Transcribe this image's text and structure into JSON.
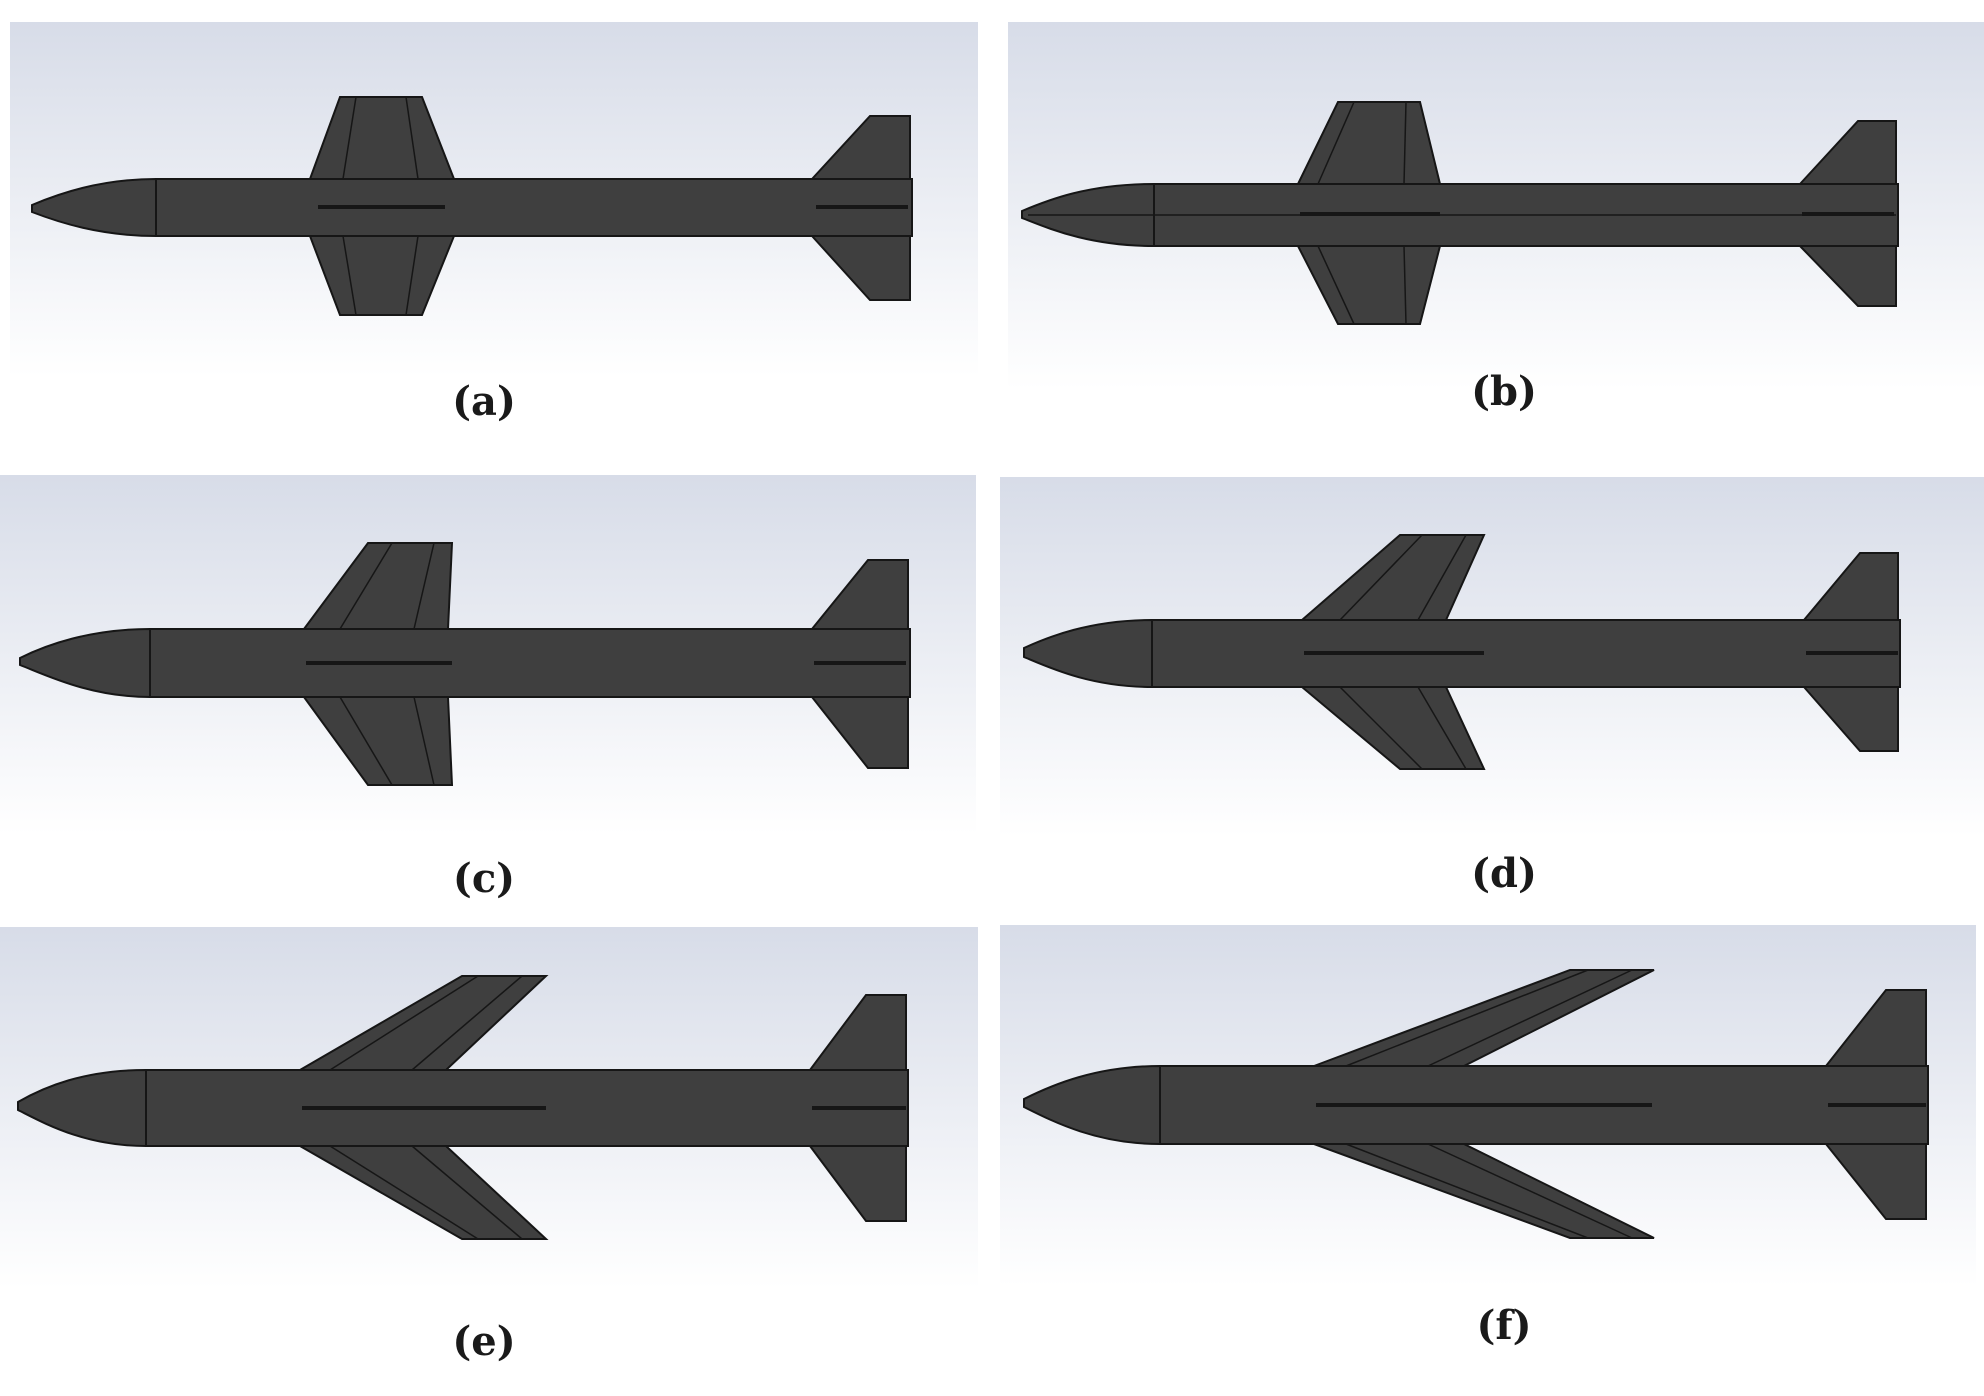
{
  "figure": {
    "captions": {
      "a": "(a)",
      "b": "(b)",
      "c": "(c)",
      "d": "(d)",
      "e": "(e)",
      "f": "(f)"
    }
  },
  "colors": {
    "background_top": "#d7dce8",
    "background_bottom": "#ffffff",
    "body": "#3f3f3f",
    "edge": "#161616",
    "caption": "#1a1a1a"
  }
}
